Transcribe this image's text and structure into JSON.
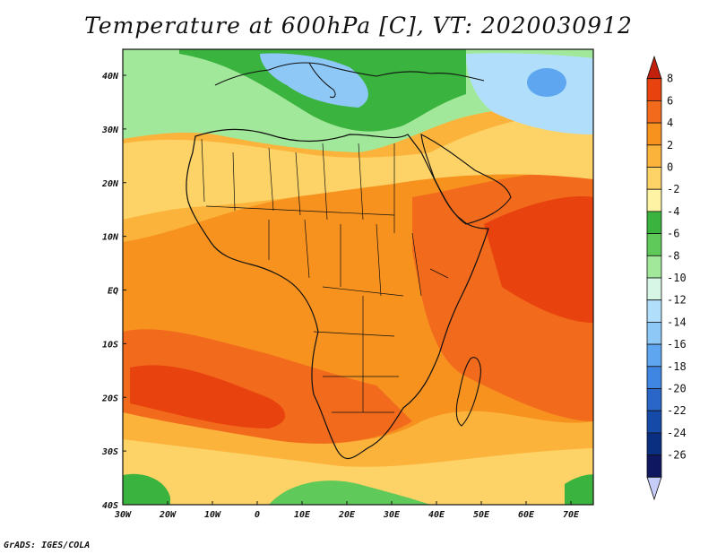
{
  "title": "Temperature at 600hPa [C], VT: 2020030912",
  "footer": "GrADS: IGES/COLA",
  "lat_labels": [
    "40N",
    "30N",
    "20N",
    "10N",
    "EQ",
    "10S",
    "20S",
    "30S",
    "40S"
  ],
  "lon_labels": [
    "30W",
    "20W",
    "10W",
    "0",
    "10E",
    "20E",
    "30E",
    "40E",
    "50E",
    "60E",
    "70E"
  ],
  "colorbar": {
    "labels": [
      "8",
      "6",
      "4",
      "2",
      "0",
      "-2",
      "-4",
      "-6",
      "-8",
      "-10",
      "-12",
      "-14",
      "-16",
      "-18",
      "-20",
      "-22",
      "-24",
      "-26"
    ],
    "colors": [
      "#c0200c",
      "#e8430f",
      "#f26a1c",
      "#f7921f",
      "#fbb33b",
      "#fdd266",
      "#fef2a4",
      "#3bb33f",
      "#5fca5a",
      "#a2e89a",
      "#d8f6e6",
      "#b1dffb",
      "#8dc8f7",
      "#5ea6ef",
      "#3f85e2",
      "#2a65c8",
      "#164aa8",
      "#0a2e80",
      "#0e1760",
      "#c7cdf9"
    ]
  },
  "map_colors": {
    "ocean": "#fbb33b",
    "land": "#fbb33b",
    "cold_north": "#a2e89a",
    "sahara": "#fdd266",
    "warm_core": "#f7921f",
    "hot_band": "#f26a1c",
    "hottest": "#e8430f",
    "south_cool": "#3bb33f",
    "blue_cold": "#5ea6ef"
  }
}
